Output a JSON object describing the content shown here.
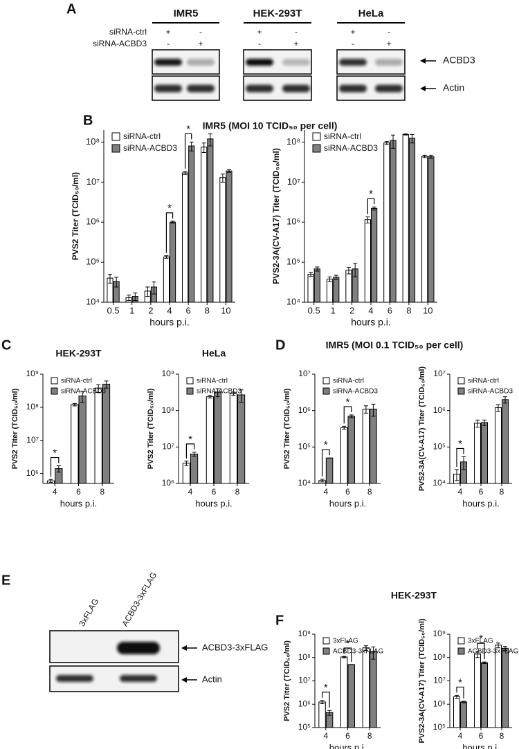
{
  "panel_letters": [
    "A",
    "B",
    "C",
    "D",
    "E",
    "F"
  ],
  "group_titles": [
    "IMR5 (MOI 10 TCID₅₀ per cell)",
    "IMR5 (MOI 0.1 TCID₅₀ per cell)",
    "HEK-293T"
  ],
  "blot_a": {
    "cells": [
      "IMR5",
      "HEK-293T",
      "HeLa"
    ],
    "rows": [
      "siRNA-ctrl",
      "siRNA-ACBD3"
    ],
    "signs": [
      [
        "+",
        "-",
        "-",
        "+"
      ],
      [
        "+",
        "-",
        "-",
        "+"
      ],
      [
        "+",
        "-",
        "-",
        "+"
      ]
    ],
    "bands": [
      "ACBD3",
      "Actin"
    ]
  },
  "blot_e": {
    "lanes": [
      "3xFLAG",
      "ACBD3-3xFLAG"
    ],
    "bands": [
      "ACBD3-3xFLAG",
      "Actin"
    ]
  },
  "chart_data": [
    {
      "type": "bar",
      "log_scale": true,
      "xlabel": "hours p.i.",
      "ylabel": "PVS2 Titer (TCID₅₀/ml)",
      "categories": [
        "0.5",
        "1",
        "2",
        "4",
        "6",
        "8",
        "10"
      ],
      "series": [
        {
          "name": "siRNA-ctrl",
          "color": "#ffffff",
          "values": [
            40000,
            13000,
            19000,
            135000,
            17000000,
            75000000,
            13000000
          ],
          "errors": [
            10000,
            2000,
            5000,
            10000,
            1500000,
            20000000,
            3000000
          ]
        },
        {
          "name": "siRNA-ACBD3",
          "color": "#808080",
          "values": [
            33000,
            14000,
            24000,
            1000000,
            80000000,
            120000000,
            19000000
          ],
          "errors": [
            9000,
            3000,
            8000,
            60000,
            20000000,
            40000000,
            1500000
          ]
        }
      ],
      "ylim": [
        10000,
        200000000
      ],
      "yticks": [
        {
          "value": 10000,
          "label": "10⁴"
        },
        {
          "value": 100000,
          "label": "10⁵"
        },
        {
          "value": 1000000,
          "label": "10⁶"
        },
        {
          "value": 10000000,
          "label": "10⁷"
        },
        {
          "value": 100000000,
          "label": "10⁸"
        }
      ],
      "annotations": [
        {
          "x": "4",
          "text": "*"
        },
        {
          "x": "6",
          "text": "*"
        }
      ]
    },
    {
      "type": "bar",
      "log_scale": true,
      "xlabel": "hours p.i.",
      "ylabel": "PVS2-3A(CV-A17) Titer (TCID₅₀/ml)",
      "categories": [
        "0.5",
        "1",
        "2",
        "4",
        "6",
        "8",
        "10"
      ],
      "series": [
        {
          "name": "siRNA-ctrl",
          "color": "#ffffff",
          "values": [
            50000,
            38000,
            63000,
            1150000,
            95000000,
            155000000,
            44000000
          ],
          "errors": [
            6000,
            5000,
            12000,
            200000,
            8000000,
            5000000,
            3000000
          ]
        },
        {
          "name": "siRNA-ACBD3",
          "color": "#808080",
          "values": [
            68000,
            42000,
            68000,
            2200000,
            110000000,
            125000000,
            43000000
          ],
          "errors": [
            8000,
            5000,
            25000,
            200000,
            40000000,
            30000000,
            4000000
          ]
        }
      ],
      "ylim": [
        10000,
        200000000
      ],
      "yticks": [
        {
          "value": 10000,
          "label": "10⁴"
        },
        {
          "value": 100000,
          "label": "10⁵"
        },
        {
          "value": 1000000,
          "label": "10⁶"
        },
        {
          "value": 10000000,
          "label": "10⁷"
        },
        {
          "value": 100000000,
          "label": "10⁸"
        }
      ],
      "annotations": [
        {
          "x": "4",
          "text": "*"
        }
      ]
    },
    {
      "type": "bar",
      "log_scale": true,
      "title": "HEK-293T",
      "xlabel": "hours p.i.",
      "ylabel": "PVS2 Titer (TCID₅₀/ml)",
      "categories": [
        "4",
        "6",
        "8"
      ],
      "series": [
        {
          "name": "siRNA-ctrl",
          "color": "#ffffff",
          "values": [
            600000,
            120000000,
            380000000
          ],
          "errors": [
            60000,
            10000000,
            100000000
          ]
        },
        {
          "name": "siRNA-ACBD3",
          "color": "#808080",
          "values": [
            1400000,
            220000000,
            500000000
          ],
          "errors": [
            300000,
            80000000,
            120000000
          ]
        }
      ],
      "ylim": [
        500000,
        1000000000
      ],
      "yticks": [
        {
          "value": 1000000,
          "label": "10⁶"
        },
        {
          "value": 10000000,
          "label": "10⁷"
        },
        {
          "value": 100000000,
          "label": "10⁸"
        },
        {
          "value": 1000000000,
          "label": "10⁹"
        }
      ],
      "annotations": [
        {
          "x": "4",
          "text": "*"
        }
      ]
    },
    {
      "type": "bar",
      "log_scale": true,
      "title": "HeLa",
      "xlabel": "hours p.i.",
      "ylabel": "PVS2 Titer (TCID₅₀/ml)",
      "categories": [
        "4",
        "6",
        "8"
      ],
      "series": [
        {
          "name": "siRNA-ctrl",
          "color": "#ffffff",
          "values": [
            3600000,
            240000000,
            290000000
          ],
          "errors": [
            500000,
            20000000,
            30000000
          ]
        },
        {
          "name": "siRNA-ACBD3",
          "color": "#808080",
          "values": [
            6400000,
            320000000,
            270000000
          ],
          "errors": [
            800000,
            80000000,
            100000000
          ]
        }
      ],
      "ylim": [
        1000000,
        1000000000
      ],
      "yticks": [
        {
          "value": 1000000,
          "label": "10⁶"
        },
        {
          "value": 10000000,
          "label": "10⁷"
        },
        {
          "value": 100000000,
          "label": "10⁸"
        },
        {
          "value": 1000000000,
          "label": "10⁹"
        }
      ],
      "annotations": [
        {
          "x": "4",
          "text": "*"
        }
      ]
    },
    {
      "type": "bar",
      "log_scale": true,
      "xlabel": "hours p.i.",
      "ylabel": "PVS2 Titer (TCID₅₀/ml)",
      "categories": [
        "4",
        "6",
        "8"
      ],
      "series": [
        {
          "name": "siRNA-ctrl",
          "color": "#ffffff",
          "values": [
            12000,
            340000,
            1100000
          ],
          "errors": [
            1000,
            30000,
            250000
          ]
        },
        {
          "name": "siRNA-ACBD3",
          "color": "#808080",
          "values": [
            50000,
            700000,
            1100000
          ],
          "errors": [
            0,
            60000,
            400000
          ]
        }
      ],
      "ylim": [
        10000,
        10000000
      ],
      "yticks": [
        {
          "value": 10000,
          "label": "10⁴"
        },
        {
          "value": 100000,
          "label": "10⁵"
        },
        {
          "value": 1000000,
          "label": "10⁶"
        },
        {
          "value": 10000000,
          "label": "10⁷"
        }
      ],
      "annotations": [
        {
          "x": "4",
          "text": "*"
        },
        {
          "x": "6",
          "text": "*"
        }
      ]
    },
    {
      "type": "bar",
      "log_scale": true,
      "xlabel": "hours p.i.",
      "ylabel": "PVS2-3A(CV-A17) Titer (TCID₅₀/ml)",
      "categories": [
        "4",
        "6",
        "8"
      ],
      "series": [
        {
          "name": "siRNA-ctrl",
          "color": "#ffffff",
          "values": [
            18000,
            450000,
            1200000
          ],
          "errors": [
            6000,
            100000,
            250000
          ]
        },
        {
          "name": "siRNA-ACBD3",
          "color": "#808080",
          "values": [
            39000,
            470000,
            2000000
          ],
          "errors": [
            15000,
            80000,
            400000
          ]
        }
      ],
      "ylim": [
        10000,
        10000000
      ],
      "yticks": [
        {
          "value": 10000,
          "label": "10⁴"
        },
        {
          "value": 100000,
          "label": "10⁵"
        },
        {
          "value": 1000000,
          "label": "10⁶"
        },
        {
          "value": 10000000,
          "label": "10⁷"
        }
      ],
      "annotations": [
        {
          "x": "4",
          "text": "*"
        }
      ]
    },
    {
      "type": "bar",
      "log_scale": true,
      "xlabel": "hours p.i.",
      "ylabel": "PVS2 Titer (TCID₅₀/ml)",
      "categories": [
        "4",
        "6",
        "8"
      ],
      "series": [
        {
          "name": "3xFLAG",
          "color": "#ffffff",
          "values": [
            1250000,
            105000000,
            260000000
          ],
          "errors": [
            200000,
            8000000,
            60000000
          ]
        },
        {
          "name": "ACBD3-3xFLAG",
          "color": "#808080",
          "values": [
            440000,
            50000000,
            185000000
          ],
          "errors": [
            100000,
            0,
            100000000
          ]
        }
      ],
      "ylim": [
        100000,
        1000000000
      ],
      "yticks": [
        {
          "value": 100000,
          "label": "10⁵"
        },
        {
          "value": 1000000,
          "label": "10⁶"
        },
        {
          "value": 10000000,
          "label": "10⁷"
        },
        {
          "value": 100000000,
          "label": "10⁸"
        },
        {
          "value": 1000000000,
          "label": "10⁹"
        }
      ],
      "annotations": [
        {
          "x": "4",
          "text": "*"
        },
        {
          "x": "6",
          "text": "*"
        }
      ]
    },
    {
      "type": "bar",
      "log_scale": true,
      "xlabel": "hours p.i.",
      "ylabel": "PVS2-3A(CV-A17) Titer (TCID₅₀/ml)",
      "categories": [
        "4",
        "6",
        "8"
      ],
      "series": [
        {
          "name": "3xFLAG",
          "color": "#ffffff",
          "values": [
            2100000,
            140000000,
            340000000
          ],
          "errors": [
            300000,
            40000000,
            80000000
          ]
        },
        {
          "name": "ACBD3-3xFLAG",
          "color": "#808080",
          "values": [
            1250000,
            60000000,
            250000000
          ],
          "errors": [
            100000,
            5000000,
            50000000
          ]
        }
      ],
      "ylim": [
        100000,
        1000000000
      ],
      "yticks": [
        {
          "value": 100000,
          "label": "10⁵"
        },
        {
          "value": 1000000,
          "label": "10⁶"
        },
        {
          "value": 10000000,
          "label": "10⁷"
        },
        {
          "value": 100000000,
          "label": "10⁸"
        },
        {
          "value": 1000000000,
          "label": "10⁹"
        }
      ],
      "annotations": [
        {
          "x": "4",
          "text": "*"
        },
        {
          "x": "6",
          "text": "*"
        }
      ]
    }
  ]
}
